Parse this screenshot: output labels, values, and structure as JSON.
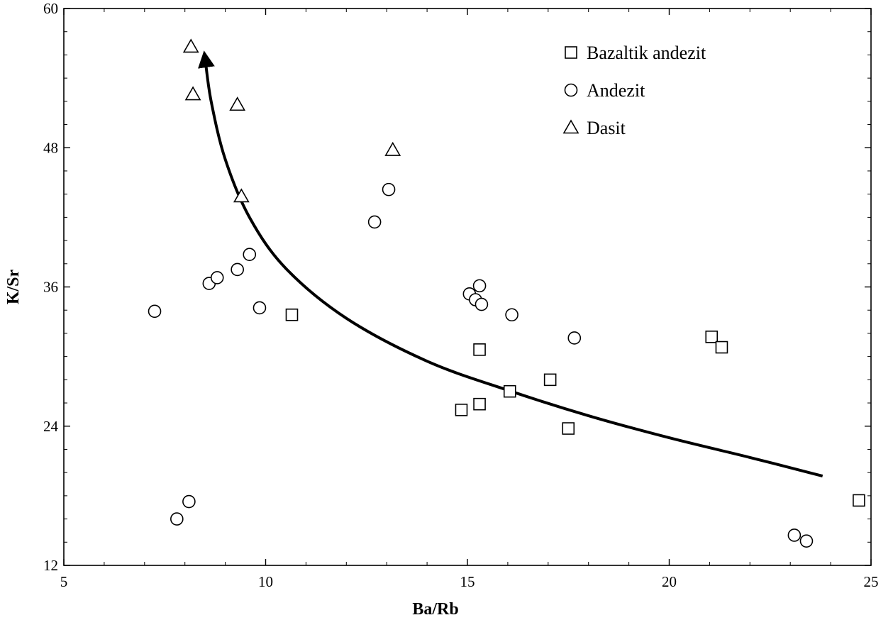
{
  "chart_data": {
    "type": "scatter",
    "title": "",
    "xlabel": "Ba/Rb",
    "ylabel": "K/Sr",
    "xlim": [
      5,
      25
    ],
    "ylim": [
      12,
      60
    ],
    "xticks": [
      5,
      10,
      15,
      20,
      25
    ],
    "yticks": [
      12,
      24,
      36,
      48,
      60
    ],
    "grid": false,
    "legend_position": "top-right",
    "series": [
      {
        "name": "Bazaltik andezit",
        "marker": "square",
        "x": [
          10.65,
          14.85,
          15.3,
          15.3,
          16.05,
          17.05,
          17.5,
          21.05,
          21.3,
          24.7
        ],
        "y": [
          33.6,
          25.4,
          25.9,
          30.6,
          27.0,
          28.0,
          23.8,
          31.7,
          30.8,
          17.6
        ]
      },
      {
        "name": "Andezit",
        "marker": "circle",
        "x": [
          7.25,
          7.8,
          8.1,
          8.6,
          8.8,
          9.3,
          9.6,
          9.85,
          12.7,
          13.05,
          15.05,
          15.2,
          15.3,
          15.35,
          16.1,
          17.65,
          23.1,
          23.4
        ],
        "y": [
          33.9,
          16.0,
          17.5,
          36.3,
          36.8,
          37.5,
          38.8,
          34.2,
          41.6,
          44.4,
          35.4,
          34.9,
          36.1,
          34.5,
          33.6,
          31.6,
          14.6,
          14.1
        ]
      },
      {
        "name": "Dasit",
        "marker": "triangle",
        "x": [
          8.15,
          8.2,
          9.3,
          9.4,
          13.15
        ],
        "y": [
          56.7,
          52.6,
          51.7,
          43.8,
          47.8
        ]
      }
    ],
    "trend_curve": {
      "x": [
        23.8,
        22.0,
        20.0,
        18.0,
        16.0,
        14.0,
        12.0,
        10.5,
        9.6,
        9.0,
        8.65,
        8.5
      ],
      "y": [
        19.7,
        21.3,
        23.0,
        24.9,
        27.1,
        29.6,
        33.3,
        37.6,
        42.0,
        47.0,
        52.0,
        55.7
      ]
    }
  }
}
